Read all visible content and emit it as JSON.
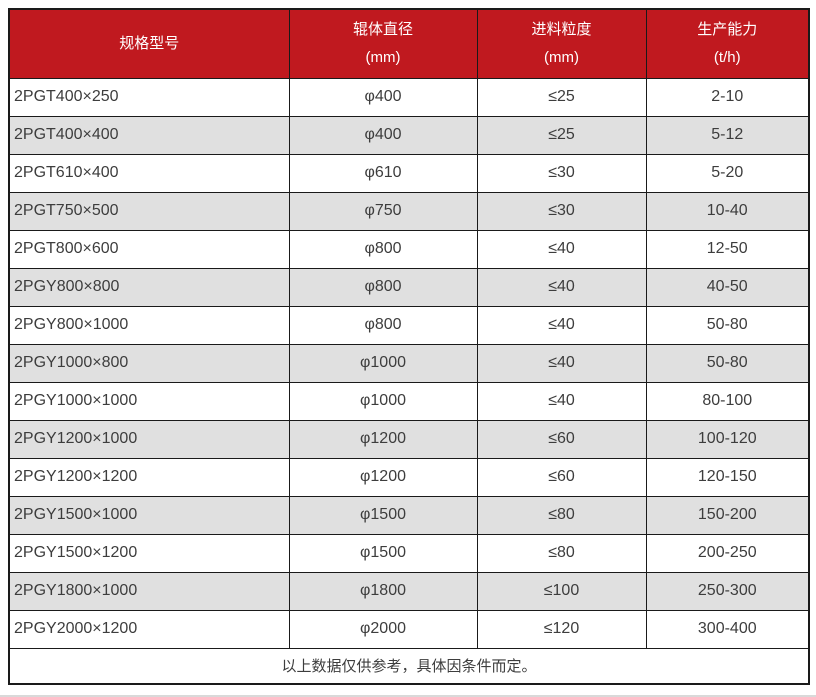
{
  "theme": {
    "header_bg": "#C0191F",
    "header_text": "#FFFFFF",
    "row_bg": "#FFFFFF",
    "row_alt_bg": "#E0E0E0",
    "border": "#1A1A1A",
    "text": "#3D3D3D",
    "page_edge": "#D9D9D9"
  },
  "chart_data": {
    "type": "table",
    "columns": [
      {
        "id": "model",
        "label": "规格型号",
        "unit": ""
      },
      {
        "id": "diameter",
        "label": "辊体直径",
        "unit": "(mm)"
      },
      {
        "id": "feed_size",
        "label": "进料粒度",
        "unit": "(mm)"
      },
      {
        "id": "capacity",
        "label": "生产能力",
        "unit": "(t/h)"
      }
    ],
    "rows": [
      {
        "model": "2PGT400×250",
        "diameter": "φ400",
        "feed_size": "≤25",
        "capacity": "2-10"
      },
      {
        "model": "2PGT400×400",
        "diameter": "φ400",
        "feed_size": "≤25",
        "capacity": "5-12"
      },
      {
        "model": "2PGT610×400",
        "diameter": "φ610",
        "feed_size": "≤30",
        "capacity": "5-20"
      },
      {
        "model": "2PGT750×500",
        "diameter": "φ750",
        "feed_size": "≤30",
        "capacity": "10-40"
      },
      {
        "model": "2PGT800×600",
        "diameter": "φ800",
        "feed_size": "≤40",
        "capacity": "12-50"
      },
      {
        "model": "2PGY800×800",
        "diameter": "φ800",
        "feed_size": "≤40",
        "capacity": "40-50"
      },
      {
        "model": "2PGY800×1000",
        "diameter": "φ800",
        "feed_size": "≤40",
        "capacity": "50-80"
      },
      {
        "model": "2PGY1000×800",
        "diameter": "φ1000",
        "feed_size": "≤40",
        "capacity": "50-80"
      },
      {
        "model": "2PGY1000×1000",
        "diameter": "φ1000",
        "feed_size": "≤40",
        "capacity": "80-100"
      },
      {
        "model": "2PGY1200×1000",
        "diameter": "φ1200",
        "feed_size": "≤60",
        "capacity": "100-120"
      },
      {
        "model": "2PGY1200×1200",
        "diameter": "φ1200",
        "feed_size": "≤60",
        "capacity": "120-150"
      },
      {
        "model": "2PGY1500×1000",
        "diameter": "φ1500",
        "feed_size": "≤80",
        "capacity": "150-200"
      },
      {
        "model": "2PGY1500×1200",
        "diameter": "φ1500",
        "feed_size": "≤80",
        "capacity": "200-250"
      },
      {
        "model": "2PGY1800×1000",
        "diameter": "φ1800",
        "feed_size": "≤100",
        "capacity": "250-300"
      },
      {
        "model": "2PGY2000×1200",
        "diameter": "φ2000",
        "feed_size": "≤120",
        "capacity": "300-400"
      }
    ],
    "footer_note": "以上数据仅供参考，具体因条件而定。"
  }
}
